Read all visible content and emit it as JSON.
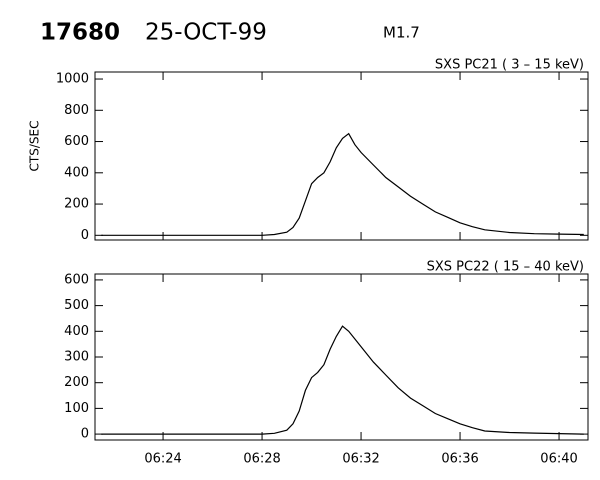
{
  "header": {
    "event": "17680",
    "date": "25-OCT-99",
    "class": "M1.7"
  },
  "chart_data": [
    {
      "type": "line",
      "title": "SXS PC21  (  3 – 15 keV)",
      "y_label": "CTS/SEC",
      "color": "#000000",
      "x": [
        381.5,
        382,
        383,
        384,
        385,
        386,
        387,
        388,
        388.5,
        389,
        389.25,
        389.5,
        389.75,
        390,
        390.25,
        390.5,
        390.75,
        391,
        391.25,
        391.5,
        391.75,
        392,
        392.5,
        393,
        393.5,
        394,
        394.5,
        395,
        395.5,
        396,
        396.5,
        397,
        398,
        399,
        400,
        401
      ],
      "values": [
        0,
        0,
        0,
        0,
        0,
        0,
        0,
        0,
        5,
        20,
        50,
        110,
        220,
        330,
        370,
        400,
        470,
        560,
        620,
        650,
        580,
        530,
        450,
        370,
        310,
        250,
        200,
        150,
        115,
        80,
        55,
        35,
        18,
        10,
        8,
        5
      ],
      "xlim": [
        381.25,
        401.17
      ],
      "xticks": [
        384,
        388,
        392,
        396,
        400
      ],
      "ylim": [
        -30,
        1045
      ],
      "yticks": [
        0,
        200,
        400,
        600,
        800,
        1000
      ]
    },
    {
      "type": "line",
      "title": "SXS PC22  ( 15 – 40 keV)",
      "color": "#000000",
      "x": [
        381.5,
        382,
        383,
        384,
        385,
        386,
        387,
        388,
        388.5,
        389,
        389.25,
        389.5,
        389.75,
        390,
        390.25,
        390.5,
        390.75,
        391,
        391.25,
        391.5,
        391.75,
        392,
        392.5,
        393,
        393.5,
        394,
        394.5,
        395,
        395.5,
        396,
        396.5,
        397,
        398,
        399,
        400,
        401
      ],
      "values": [
        0,
        0,
        0,
        0,
        0,
        0,
        0,
        0,
        3,
        15,
        40,
        90,
        170,
        220,
        240,
        270,
        330,
        380,
        420,
        400,
        370,
        340,
        280,
        230,
        180,
        140,
        110,
        80,
        60,
        40,
        25,
        12,
        6,
        4,
        2,
        0
      ],
      "xlim": [
        381.25,
        401.17
      ],
      "xticks": [
        {
          "value": 384,
          "label": "06:24"
        },
        {
          "value": 388,
          "label": "06:28"
        },
        {
          "value": 392,
          "label": "06:32"
        },
        {
          "value": 396,
          "label": "06:36"
        },
        {
          "value": 400,
          "label": "06:40"
        }
      ],
      "ylim": [
        -23,
        623
      ],
      "yticks": [
        0,
        100,
        200,
        300,
        400,
        500,
        600
      ]
    }
  ]
}
